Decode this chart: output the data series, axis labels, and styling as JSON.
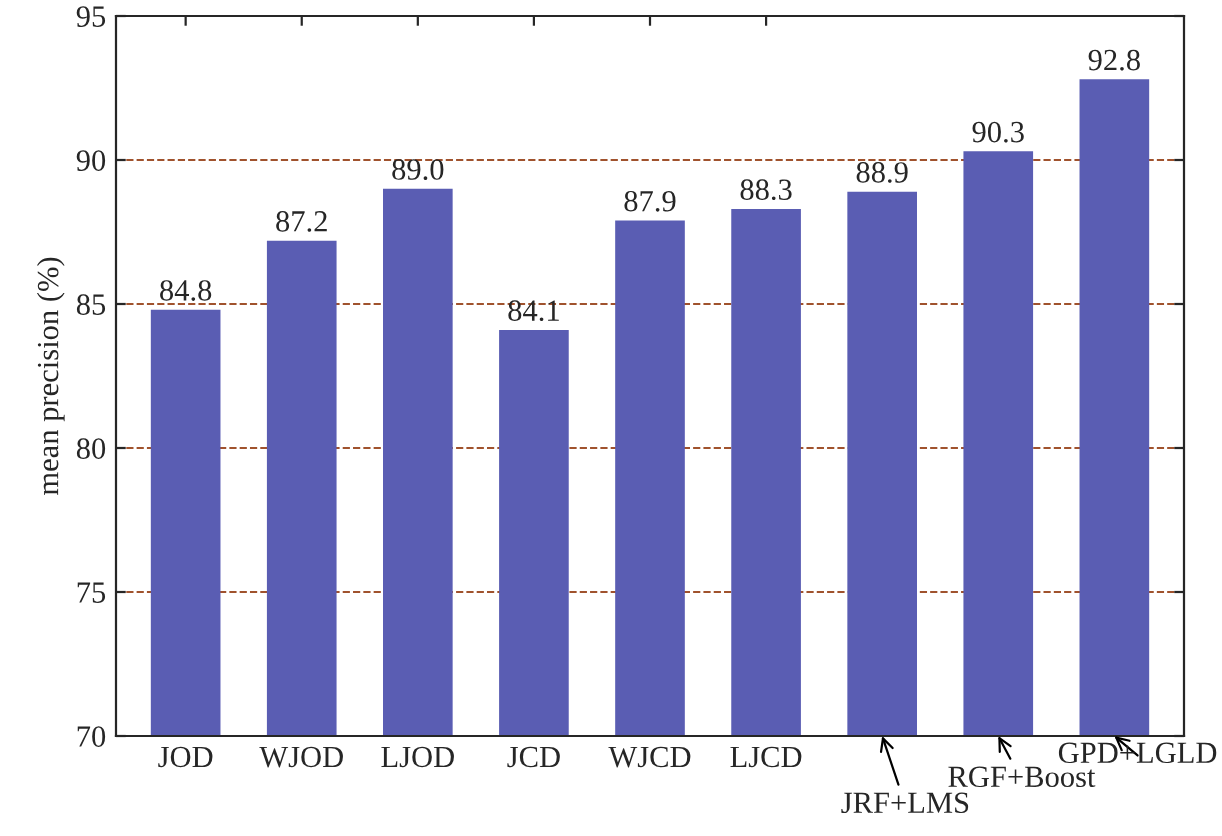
{
  "chart_data": {
    "type": "bar",
    "ylabel": "mean precision (%)",
    "categories": [
      "JOD",
      "WJOD",
      "LJOD",
      "JCD",
      "WJCD",
      "LJCD",
      "JRF+LMS",
      "RGF+Boost",
      "GPD+LGLD"
    ],
    "values": [
      84.8,
      87.2,
      89.0,
      84.1,
      87.9,
      88.3,
      88.9,
      90.3,
      92.8
    ],
    "value_labels": [
      "84.8",
      "87.2",
      "89.0",
      "84.1",
      "87.9",
      "88.3",
      "88.9",
      "90.3",
      "92.8"
    ],
    "color": "#5a5db3",
    "ylim": [
      70,
      95
    ],
    "yticks": [
      70,
      75,
      80,
      85,
      90,
      95
    ],
    "grid": "y",
    "data_labels": true
  }
}
